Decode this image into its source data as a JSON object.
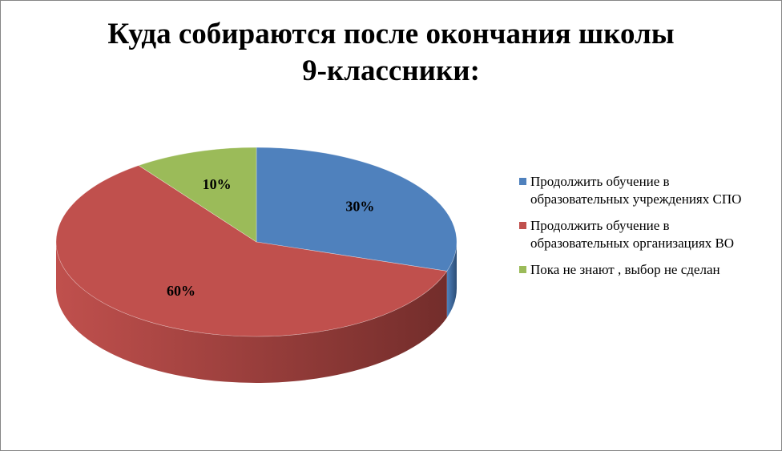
{
  "chart_data": {
    "type": "pie",
    "title": "Куда собираются после окончания школы 9-классники:",
    "title_lines": [
      "Куда собираются после окончания школы",
      "9-классники:"
    ],
    "categories": [
      "Продолжить обучение в образовательных учреждениях СПО",
      "Продолжить обучение в образовательных организациях ВО",
      "Пока не знают , выбор не сделан"
    ],
    "values": [
      30,
      60,
      10
    ],
    "data_labels": [
      "30%",
      "60%",
      "10%"
    ],
    "colors": [
      "#4F81BD",
      "#C0504D",
      "#9BBB59"
    ],
    "side_colors": [
      "#2C4D75",
      "#732D2B",
      "#5E7635"
    ],
    "legend_position": "right",
    "style": "3d",
    "start_angle_deg": 0,
    "direction": "clockwise"
  }
}
